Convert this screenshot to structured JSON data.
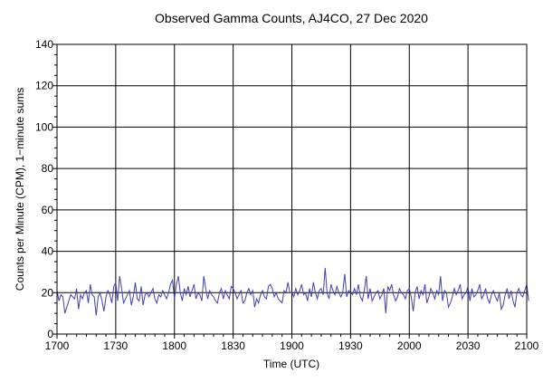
{
  "chart_data": {
    "type": "line",
    "title": "Observed Gamma Counts, AJ4CO, 27 Dec 2020",
    "xlabel": "Time (UTC)",
    "ylabel": "Counts per Minute (CPM), 1−minute sums",
    "xlim_minutes": [
      0,
      240
    ],
    "ylim": [
      0,
      140
    ],
    "x_ticks": [
      {
        "m": 0,
        "label": "1700"
      },
      {
        "m": 30,
        "label": "1730"
      },
      {
        "m": 60,
        "label": "1800"
      },
      {
        "m": 90,
        "label": "1830"
      },
      {
        "m": 120,
        "label": "1900"
      },
      {
        "m": 150,
        "label": "1930"
      },
      {
        "m": 180,
        "label": "2000"
      },
      {
        "m": 210,
        "label": "2030"
      },
      {
        "m": 240,
        "label": "2100"
      }
    ],
    "y_ticks": [
      0,
      20,
      40,
      60,
      80,
      100,
      120,
      140
    ],
    "grid": true,
    "line_color": "#4040b0",
    "series": [
      {
        "name": "CPM",
        "interval_minutes": 1,
        "values": [
          21,
          16,
          19,
          18,
          10,
          13,
          16,
          19,
          18,
          17,
          22,
          12,
          19,
          17,
          20,
          21,
          15,
          24,
          19,
          18,
          9,
          18,
          20,
          16,
          11,
          18,
          21,
          19,
          15,
          23,
          25,
          16,
          28,
          22,
          15,
          17,
          19,
          21,
          14,
          18,
          25,
          17,
          16,
          23,
          14,
          19,
          20,
          18,
          20,
          22,
          17,
          15,
          19,
          18,
          21,
          19,
          17,
          20,
          24,
          26,
          17,
          24,
          28,
          20,
          16,
          22,
          19,
          23,
          18,
          21,
          24,
          17,
          20,
          19,
          16,
          28,
          22,
          17,
          21,
          19,
          18,
          16,
          15,
          20,
          22,
          17,
          21,
          19,
          17,
          23,
          22,
          20,
          17,
          19,
          21,
          15,
          16,
          20,
          22,
          19,
          21,
          13,
          17,
          15,
          19,
          21,
          18,
          17,
          23,
          24,
          22,
          18,
          20,
          17,
          16,
          15,
          21,
          20,
          25,
          20,
          20,
          18,
          22,
          19,
          21,
          24,
          19,
          20,
          16,
          22,
          18,
          25,
          20,
          17,
          21,
          22,
          19,
          32,
          20,
          17,
          24,
          21,
          19,
          23,
          20,
          18,
          20,
          29,
          18,
          21,
          20,
          19,
          22,
          19,
          24,
          18,
          16,
          21,
          28,
          17,
          22,
          16,
          18,
          20,
          21,
          17,
          19,
          22,
          10,
          23,
          21,
          24,
          19,
          16,
          18,
          22,
          20,
          19,
          17,
          21,
          22,
          18,
          11,
          20,
          23,
          17,
          21,
          19,
          24,
          15,
          18,
          22,
          20,
          17,
          21,
          19,
          28,
          16,
          21,
          20,
          13,
          15,
          18,
          22,
          19,
          21,
          24,
          17,
          19,
          20,
          23,
          16,
          22,
          18,
          19,
          21,
          24,
          17,
          19,
          22,
          17,
          15,
          19,
          21,
          18,
          16,
          20,
          12,
          14,
          19,
          22,
          17,
          21,
          16,
          13,
          20,
          22,
          19,
          18,
          21,
          24,
          16
        ]
      }
    ]
  }
}
